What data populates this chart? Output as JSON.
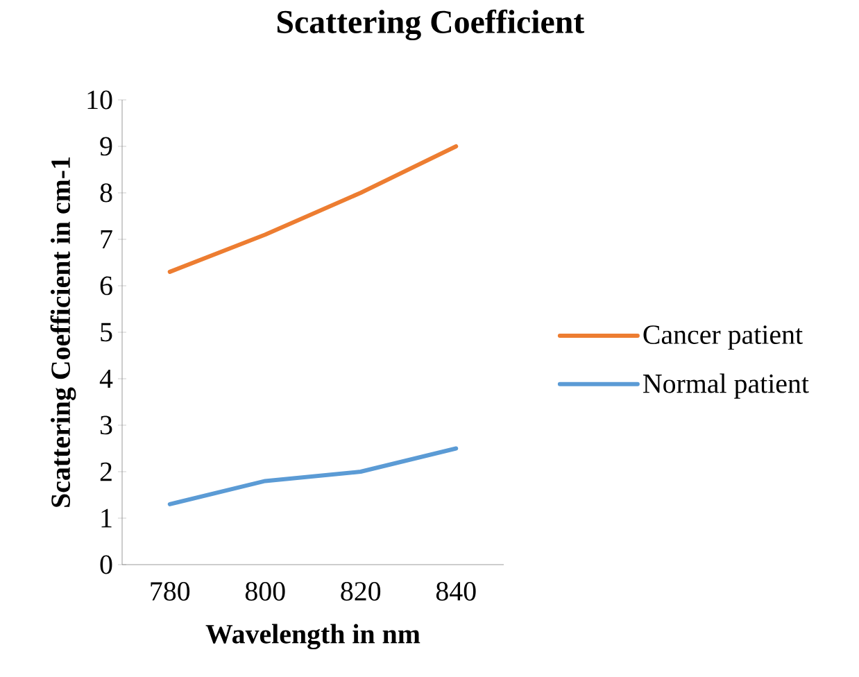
{
  "chart_data": {
    "type": "line",
    "title": "Scattering Coefficient",
    "xlabel": "Wavelength in nm",
    "ylabel": "Scattering Coefficient in cm-1",
    "categories": [
      "780",
      "800",
      "820",
      "840"
    ],
    "series": [
      {
        "name": "Cancer patient",
        "color": "#ed7d31",
        "values": [
          6.3,
          7.1,
          8.0,
          9.0
        ]
      },
      {
        "name": "Normal patient",
        "color": "#5b9bd5",
        "values": [
          1.3,
          1.8,
          2.0,
          2.5
        ]
      }
    ],
    "ylim": [
      0,
      10
    ],
    "yticks": [
      0,
      1,
      2,
      3,
      4,
      5,
      6,
      7,
      8,
      9,
      10
    ],
    "grid": false,
    "legend": "right",
    "marker": "none",
    "line_style": "solid"
  }
}
